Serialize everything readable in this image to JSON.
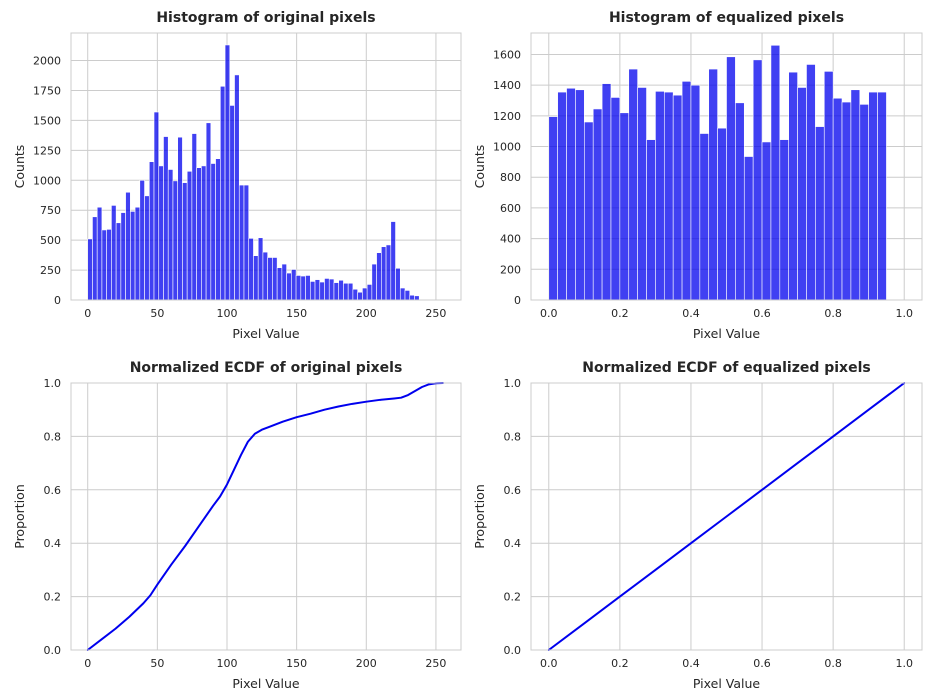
{
  "chart_data": [
    {
      "type": "bar",
      "title": "Histogram of original pixels",
      "xlabel": "Pixel Value",
      "ylabel": "Counts",
      "xlim": [
        -12,
        268
      ],
      "ylim": [
        0,
        2230
      ],
      "xticks": [
        0,
        50,
        100,
        150,
        200,
        250
      ],
      "yticks": [
        0,
        250,
        500,
        750,
        1000,
        1250,
        1500,
        1750,
        2000,
        2250
      ],
      "bin_start": 0,
      "bin_width": 3.4,
      "values": [
        510,
        695,
        775,
        585,
        590,
        790,
        645,
        730,
        900,
        740,
        775,
        1000,
        870,
        1155,
        1570,
        1120,
        1365,
        1090,
        995,
        1360,
        980,
        1075,
        1390,
        1105,
        1120,
        1480,
        1140,
        1180,
        1785,
        2130,
        1625,
        1880,
        960,
        960,
        515,
        370,
        520,
        400,
        355,
        355,
        270,
        300,
        225,
        255,
        205,
        200,
        205,
        155,
        170,
        150,
        180,
        175,
        145,
        165,
        140,
        140,
        90,
        65,
        100,
        130,
        300,
        395,
        445,
        460,
        655,
        265,
        100,
        80,
        40,
        35
      ],
      "color": "#0000ee",
      "grid": true
    },
    {
      "type": "bar",
      "title": "Histogram of equalized pixels",
      "xlabel": "Pixel Value",
      "ylabel": "Counts",
      "xlim": [
        -0.05,
        1.05
      ],
      "ylim": [
        0,
        1740
      ],
      "xticks": [
        0.0,
        0.2,
        0.4,
        0.6,
        0.8,
        1.0
      ],
      "yticks": [
        0,
        200,
        400,
        600,
        800,
        1000,
        1200,
        1400,
        1600
      ],
      "bin_start": 0,
      "bin_width": 0.025,
      "values": [
        1195,
        1355,
        1380,
        1370,
        1160,
        1245,
        1410,
        1320,
        1220,
        1505,
        1385,
        1045,
        1360,
        1355,
        1335,
        1425,
        1400,
        1085,
        1505,
        1120,
        1585,
        1285,
        935,
        1565,
        1030,
        1660,
        1045,
        1485,
        1385,
        1535,
        1130,
        1490,
        1315,
        1290,
        1370,
        1275,
        1355,
        1355
      ],
      "color": "#0000ee",
      "grid": true
    },
    {
      "type": "line",
      "title": "Normalized ECDF of original pixels",
      "xlabel": "Pixel Value",
      "ylabel": "Proportion",
      "xlim": [
        -12,
        268
      ],
      "ylim": [
        0,
        1.0
      ],
      "xticks": [
        0,
        50,
        100,
        150,
        200,
        250
      ],
      "yticks": [
        0.0,
        0.2,
        0.4,
        0.6,
        0.8,
        1.0
      ],
      "x": [
        0,
        10,
        20,
        30,
        40,
        45,
        50,
        60,
        70,
        80,
        90,
        95,
        100,
        105,
        110,
        115,
        120,
        125,
        130,
        140,
        150,
        160,
        170,
        180,
        190,
        200,
        210,
        220,
        225,
        230,
        235,
        240,
        245,
        250,
        255
      ],
      "y": [
        0.0,
        0.04,
        0.08,
        0.125,
        0.175,
        0.205,
        0.245,
        0.32,
        0.39,
        0.465,
        0.54,
        0.575,
        0.62,
        0.675,
        0.73,
        0.78,
        0.81,
        0.825,
        0.835,
        0.855,
        0.872,
        0.885,
        0.9,
        0.912,
        0.922,
        0.93,
        0.937,
        0.942,
        0.945,
        0.955,
        0.97,
        0.985,
        0.995,
        0.999,
        1.0
      ],
      "color": "#0000ee",
      "grid": true
    },
    {
      "type": "line",
      "title": "Normalized ECDF of equalized pixels",
      "xlabel": "Pixel Value",
      "ylabel": "Proportion",
      "xlim": [
        -0.05,
        1.05
      ],
      "ylim": [
        0,
        1.0
      ],
      "xticks": [
        0.0,
        0.2,
        0.4,
        0.6,
        0.8,
        1.0
      ],
      "yticks": [
        0.0,
        0.2,
        0.4,
        0.6,
        0.8,
        1.0
      ],
      "x": [
        0.0,
        0.1,
        0.2,
        0.3,
        0.4,
        0.5,
        0.6,
        0.7,
        0.8,
        0.9,
        1.0
      ],
      "y": [
        0.0,
        0.1,
        0.2,
        0.3,
        0.4,
        0.5,
        0.6,
        0.7,
        0.8,
        0.9,
        1.0
      ],
      "color": "#0000ee",
      "grid": true
    }
  ]
}
